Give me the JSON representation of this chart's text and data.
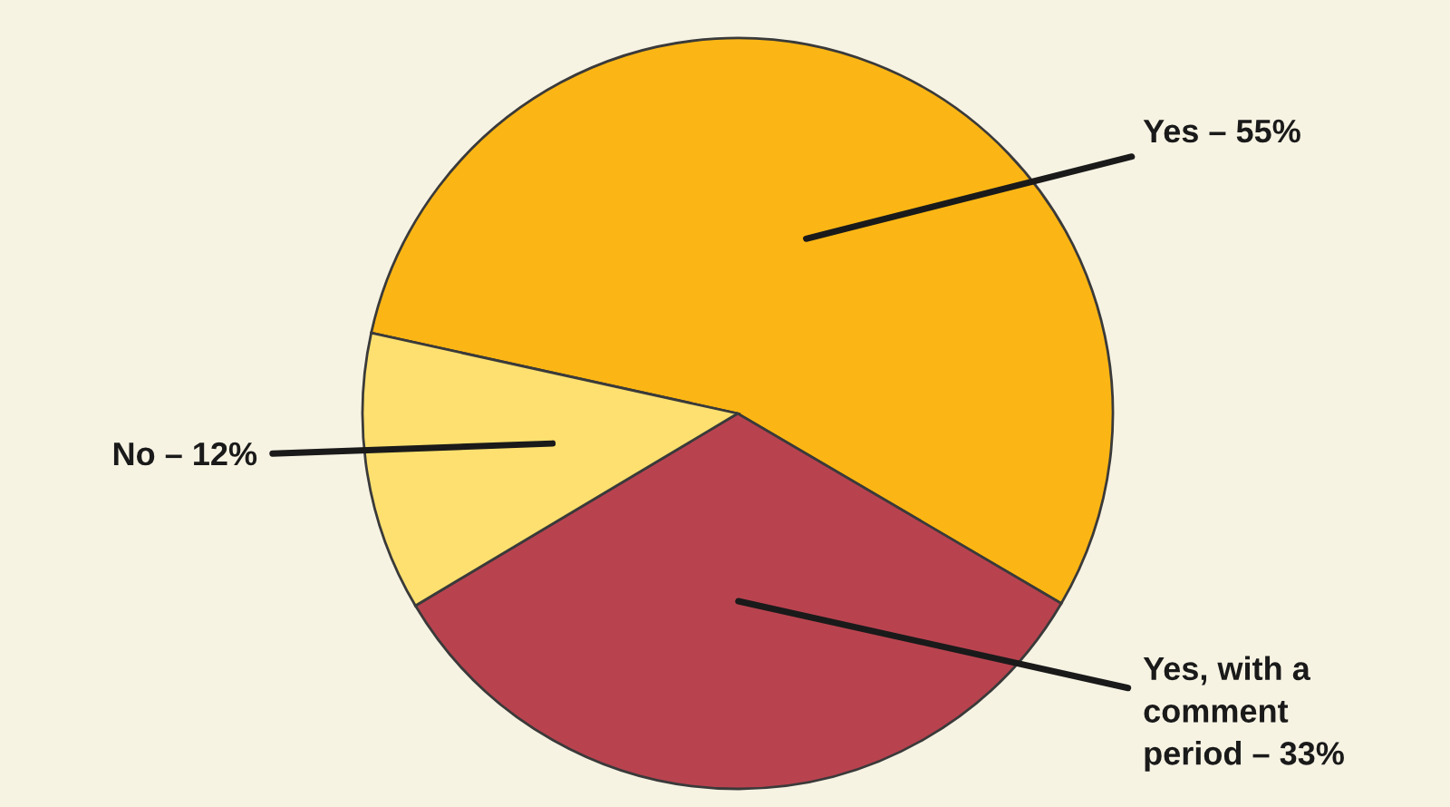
{
  "chart_data": {
    "type": "pie",
    "categories": [
      "Yes – 55%",
      "Yes, with a\ncomment\nperiod – 33%",
      "No – 12%"
    ],
    "values": [
      55,
      33,
      12
    ],
    "colors": [
      "#fbb615",
      "#b8434f",
      "#fde06f"
    ]
  }
}
